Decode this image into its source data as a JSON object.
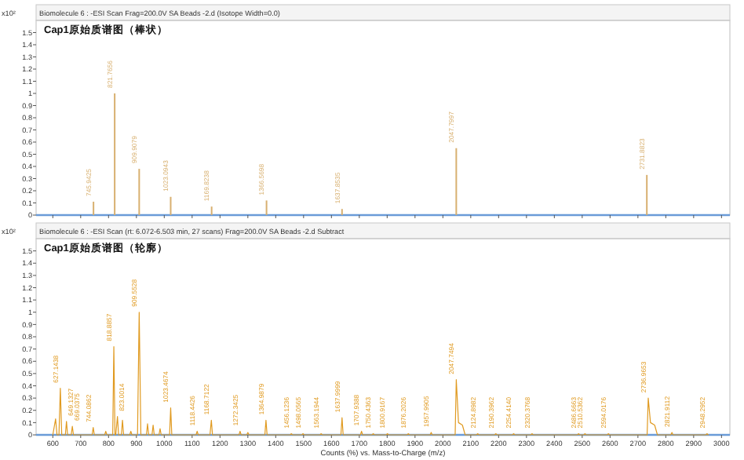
{
  "chart_data": [
    {
      "type": "bar",
      "title": "Biomolecule 6 : -ESI Scan Frag=200.0V SA Beads -2.d (Isotope Width=0.0)",
      "subtitle": "Cap1原始质谱图（棒状）",
      "ylabel": "x10²",
      "x": [
        746,
        822,
        910,
        1023,
        1170,
        1367,
        1638,
        2048,
        2732
      ],
      "values": [
        0.11,
        1.0,
        0.38,
        0.15,
        0.07,
        0.12,
        0.05,
        0.55,
        0.33
      ],
      "annotations": [
        {
          "text": "745.9425",
          "x": 746,
          "y": 0.11
        },
        {
          "text": "821.7656",
          "x": 822,
          "y": 1.0
        },
        {
          "text": "909.9079",
          "x": 910,
          "y": 0.38
        },
        {
          "text": "1023.0943",
          "x": 1023,
          "y": 0.15
        },
        {
          "text": "1169.8238",
          "x": 1170,
          "y": 0.07
        },
        {
          "text": "1366.5698",
          "x": 1367,
          "y": 0.12
        },
        {
          "text": "1637.8535",
          "x": 1638,
          "y": 0.05
        },
        {
          "text": "2047.7997",
          "x": 2048,
          "y": 0.55
        },
        {
          "text": "2731.8823",
          "x": 2732,
          "y": 0.33
        }
      ],
      "color": "#d8b070",
      "xlim": [
        540,
        3030
      ],
      "ylim": [
        0,
        1.6
      ],
      "xticks": [
        600,
        700,
        800,
        900,
        1000,
        1100,
        1200,
        1300,
        1400,
        1500,
        1600,
        1700,
        1800,
        1900,
        2000,
        2100,
        2200,
        2300,
        2400,
        2500,
        2600,
        2700,
        2800,
        2900,
        3000
      ],
      "yticks": [
        0,
        0.1,
        0.2,
        0.3,
        0.4,
        0.5,
        0.6,
        0.7,
        0.8,
        0.9,
        1,
        1.1,
        1.2,
        1.3,
        1.4,
        1.5
      ],
      "tick_labels": "y"
    },
    {
      "type": "line",
      "title": "Biomolecule 6 : -ESI Scan (rt: 6.072-6.503 min, 27 scans) Frag=200.0V SA Beads -2.d Subtract",
      "subtitle": "Cap1原始质谱图（轮廓）",
      "ylabel": "x10²",
      "xlabel": "Counts (%) vs. Mass-to-Charge (m/z)",
      "x": [
        600,
        610,
        615,
        622,
        627,
        632,
        645,
        649,
        653,
        666,
        670,
        674,
        741,
        745,
        749,
        786,
        790,
        794,
        815,
        819,
        823,
        826,
        832,
        836,
        846,
        850,
        854,
        876,
        880,
        884,
        904,
        910,
        916,
        936,
        940,
        944,
        956,
        960,
        964,
        981,
        985,
        989,
        1019,
        1023,
        1027,
        1114,
        1118,
        1122,
        1164,
        1169,
        1173,
        1268,
        1272,
        1276,
        1296,
        1300,
        1304,
        1361,
        1365,
        1369,
        1452,
        1456,
        1460,
        1494,
        1498,
        1502,
        1559,
        1563,
        1567,
        1634,
        1638,
        1642,
        1704,
        1708,
        1712,
        1746,
        1750,
        1754,
        1797,
        1801,
        1805,
        1872,
        1876,
        1880,
        1954,
        1958,
        1962,
        2044,
        2048,
        2056,
        2070,
        2080,
        2121,
        2125,
        2129,
        2186,
        2190,
        2194,
        2250,
        2254,
        2258,
        2316,
        2320,
        2324,
        2483,
        2487,
        2491,
        2506,
        2510,
        2514,
        2590,
        2594,
        2598,
        2733,
        2737,
        2745,
        2760,
        2770,
        2818,
        2822,
        2826,
        2944,
        2948,
        2952
      ],
      "values": [
        0,
        0.13,
        0,
        0,
        0.38,
        0,
        0,
        0.11,
        0,
        0,
        0.07,
        0,
        0,
        0.06,
        0,
        0,
        0.03,
        0,
        0,
        0.72,
        0,
        0,
        0.15,
        0,
        0,
        0.12,
        0,
        0,
        0.03,
        0,
        0,
        1.0,
        0,
        0,
        0.09,
        0,
        0,
        0.08,
        0,
        0,
        0.05,
        0,
        0,
        0.22,
        0,
        0,
        0.03,
        0,
        0,
        0.12,
        0,
        0,
        0.03,
        0,
        0,
        0.02,
        0,
        0,
        0.12,
        0,
        0,
        0.01,
        0,
        0,
        0.01,
        0,
        0,
        0.01,
        0,
        0,
        0.14,
        0,
        0,
        0.03,
        0,
        0,
        0.01,
        0,
        0,
        0.01,
        0,
        0,
        0.01,
        0,
        0,
        0.02,
        0,
        0,
        0.45,
        0.1,
        0.08,
        0,
        0,
        0.01,
        0,
        0,
        0.01,
        0,
        0,
        0.01,
        0,
        0,
        0.01,
        0,
        0,
        0.01,
        0,
        0,
        0.01,
        0,
        0,
        0.01,
        0,
        0,
        0.3,
        0.1,
        0.08,
        0,
        0,
        0.02,
        0,
        0,
        0.01,
        0
      ],
      "annotations": [
        {
          "text": "627.1438",
          "x": 627,
          "y": 0.38
        },
        {
          "text": "649.1327",
          "x": 649,
          "y": 0.11
        },
        {
          "text": "669.0375",
          "x": 670,
          "y": 0.07
        },
        {
          "text": "744.0862",
          "x": 745,
          "y": 0.06
        },
        {
          "text": "818.8857",
          "x": 819,
          "y": 0.72
        },
        {
          "text": "823.0014",
          "x": 832,
          "y": 0.15
        },
        {
          "text": "909.5528",
          "x": 910,
          "y": 1.0
        },
        {
          "text": "1023.4674",
          "x": 1023,
          "y": 0.22
        },
        {
          "text": "1118.4426",
          "x": 1118,
          "y": 0.03
        },
        {
          "text": "1168.7122",
          "x": 1169,
          "y": 0.12
        },
        {
          "text": "1272.3425",
          "x": 1272,
          "y": 0.03
        },
        {
          "text": "1364.9879",
          "x": 1365,
          "y": 0.12
        },
        {
          "text": "1456.1236",
          "x": 1456,
          "y": 0.01
        },
        {
          "text": "1498.0565",
          "x": 1498,
          "y": 0.01
        },
        {
          "text": "1563.1944",
          "x": 1563,
          "y": 0.01
        },
        {
          "text": "1637.9999",
          "x": 1638,
          "y": 0.14
        },
        {
          "text": "1707.9388",
          "x": 1708,
          "y": 0.03
        },
        {
          "text": "1750.4363",
          "x": 1750,
          "y": 0.01
        },
        {
          "text": "1800.9167",
          "x": 1801,
          "y": 0.01
        },
        {
          "text": "1876.2026",
          "x": 1876,
          "y": 0.01
        },
        {
          "text": "1957.9905",
          "x": 1958,
          "y": 0.02
        },
        {
          "text": "2047.7494",
          "x": 2048,
          "y": 0.45
        },
        {
          "text": "2124.8982",
          "x": 2125,
          "y": 0.01
        },
        {
          "text": "2190.3962",
          "x": 2190,
          "y": 0.01
        },
        {
          "text": "2254.4140",
          "x": 2254,
          "y": 0.01
        },
        {
          "text": "2320.3768",
          "x": 2320,
          "y": 0.01
        },
        {
          "text": "2486.6663",
          "x": 2487,
          "y": 0.01
        },
        {
          "text": "2510.5362",
          "x": 2510,
          "y": 0.01
        },
        {
          "text": "2594.0176",
          "x": 2594,
          "y": 0.01
        },
        {
          "text": "2736.9653",
          "x": 2737,
          "y": 0.3
        },
        {
          "text": "2821.9112",
          "x": 2822,
          "y": 0.02
        },
        {
          "text": "2948.2952",
          "x": 2948,
          "y": 0.01
        }
      ],
      "color": "#e09a20",
      "xlim": [
        540,
        3030
      ],
      "ylim": [
        0,
        1.6
      ],
      "xticks": [
        600,
        700,
        800,
        900,
        1000,
        1100,
        1200,
        1300,
        1400,
        1500,
        1600,
        1700,
        1800,
        1900,
        2000,
        2100,
        2200,
        2300,
        2400,
        2500,
        2600,
        2700,
        2800,
        2900,
        3000
      ],
      "yticks": [
        0,
        0.1,
        0.2,
        0.3,
        0.4,
        0.5,
        0.6,
        0.7,
        0.8,
        0.9,
        1,
        1.1,
        1.2,
        1.3,
        1.4,
        1.5
      ]
    }
  ]
}
